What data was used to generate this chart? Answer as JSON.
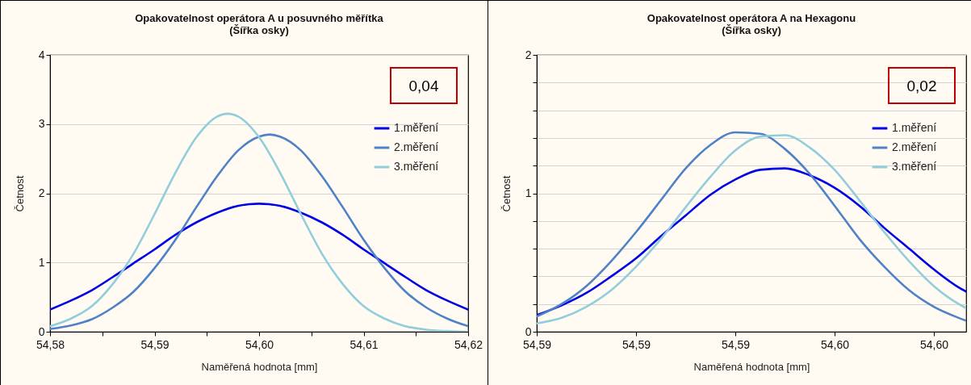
{
  "chart_data": [
    {
      "type": "line",
      "title": "Opakovatelnost operátora A u posuvného měřítka",
      "subtitle": "(Šířka osky)",
      "xlabel": "Naměřená hodnota [mm]",
      "ylabel": "Četnost",
      "annotations": [
        "0,04"
      ],
      "xlim": [
        54.58,
        54.62
      ],
      "xticks": [
        {
          "value": 54.58,
          "label": "54,58"
        },
        {
          "value": 54.585,
          "label": null
        },
        {
          "value": 54.59,
          "label": "54,59"
        },
        {
          "value": 54.595,
          "label": null
        },
        {
          "value": 54.6,
          "label": "54,60"
        },
        {
          "value": 54.605,
          "label": null
        },
        {
          "value": 54.61,
          "label": "54,61"
        },
        {
          "value": 54.615,
          "label": null
        },
        {
          "value": 54.62,
          "label": "54,62"
        }
      ],
      "ylim": [
        0,
        4
      ],
      "yticks": [
        0,
        1,
        2,
        3,
        4
      ],
      "grid": "y",
      "legend": "top right",
      "series": [
        {
          "name": "1.měření",
          "color": "#0000e6",
          "x": [
            54.58,
            54.582,
            54.584,
            54.586,
            54.588,
            54.59,
            54.592,
            54.594,
            54.596,
            54.598,
            54.6,
            54.602,
            54.604,
            54.606,
            54.608,
            54.61,
            54.612,
            54.614,
            54.616,
            54.618,
            54.62
          ],
          "values": [
            0.32,
            0.45,
            0.6,
            0.79,
            0.99,
            1.19,
            1.4,
            1.58,
            1.72,
            1.82,
            1.85,
            1.82,
            1.72,
            1.58,
            1.4,
            1.19,
            0.99,
            0.79,
            0.6,
            0.45,
            0.32
          ]
        },
        {
          "name": "2.měření",
          "color": "#4f81c8",
          "x": [
            54.58,
            54.582,
            54.584,
            54.586,
            54.588,
            54.59,
            54.592,
            54.594,
            54.596,
            54.598,
            54.6,
            54.601,
            54.602,
            54.604,
            54.606,
            54.608,
            54.61,
            54.612,
            54.614,
            54.616,
            54.618,
            54.62
          ],
          "values": [
            0.04,
            0.09,
            0.18,
            0.35,
            0.58,
            0.92,
            1.33,
            1.8,
            2.25,
            2.62,
            2.82,
            2.85,
            2.82,
            2.62,
            2.25,
            1.8,
            1.33,
            0.92,
            0.58,
            0.35,
            0.19,
            0.08
          ]
        },
        {
          "name": "3.měření",
          "color": "#92cddc",
          "x": [
            54.58,
            54.582,
            54.584,
            54.586,
            54.588,
            54.59,
            54.592,
            54.594,
            54.596,
            54.597,
            54.598,
            54.6,
            54.602,
            54.604,
            54.606,
            54.608,
            54.61,
            54.612,
            54.614,
            54.616,
            54.618,
            54.62
          ],
          "values": [
            0.08,
            0.19,
            0.37,
            0.69,
            1.13,
            1.7,
            2.3,
            2.81,
            3.11,
            3.15,
            3.11,
            2.81,
            2.3,
            1.7,
            1.13,
            0.69,
            0.37,
            0.19,
            0.08,
            0.03,
            0.01,
            0
          ]
        }
      ]
    },
    {
      "type": "line",
      "title": "Opakovatelnost operátora A na Hexagonu",
      "subtitle": "(Šířka osky)",
      "xlabel": "Naměřená hodnota [mm]",
      "ylabel": "Četnost",
      "annotations": [
        "0,02"
      ],
      "xlim": [
        54.586,
        54.6033
      ],
      "xticks": [
        {
          "value": 54.586,
          "label": "54,59"
        },
        {
          "value": 54.59,
          "label": "54,59"
        },
        {
          "value": 54.594,
          "label": "54,59"
        },
        {
          "value": 54.598,
          "label": "54,60"
        },
        {
          "value": 54.602,
          "label": "54,60"
        }
      ],
      "ylim": [
        0,
        2
      ],
      "yticks": [
        0,
        {
          "value": 0.2,
          "label": null
        },
        {
          "value": 0.4,
          "label": null
        },
        {
          "value": 0.6,
          "label": null
        },
        {
          "value": 0.8,
          "label": null
        },
        1,
        {
          "value": 1.2,
          "label": null
        },
        {
          "value": 1.4,
          "label": null
        },
        {
          "value": 1.6,
          "label": null
        },
        {
          "value": 1.8,
          "label": null
        },
        2
      ],
      "grid": "y",
      "legend": "top right",
      "series": [
        {
          "name": "1.měření",
          "color": "#0000e6",
          "x": [
            54.586,
            54.587,
            54.588,
            54.589,
            54.59,
            54.591,
            54.592,
            54.593,
            54.594,
            54.595,
            54.596,
            54.597,
            54.598,
            54.599,
            54.6,
            54.601,
            54.602,
            54.603,
            54.6033
          ],
          "values": [
            0.12,
            0.19,
            0.28,
            0.4,
            0.53,
            0.69,
            0.84,
            0.99,
            1.1,
            1.17,
            1.18,
            1.13,
            1.04,
            0.91,
            0.75,
            0.6,
            0.45,
            0.32,
            0.29
          ]
        },
        {
          "name": "2.měření",
          "color": "#4f81c8",
          "x": [
            54.586,
            54.587,
            54.588,
            54.589,
            54.59,
            54.591,
            54.592,
            54.593,
            54.594,
            54.595,
            54.596,
            54.597,
            54.598,
            54.599,
            54.6,
            54.601,
            54.602,
            54.603,
            54.6033
          ],
          "values": [
            0.11,
            0.2,
            0.33,
            0.51,
            0.72,
            0.95,
            1.18,
            1.35,
            1.44,
            1.43,
            1.32,
            1.14,
            0.91,
            0.67,
            0.47,
            0.3,
            0.18,
            0.1,
            0.08
          ]
        },
        {
          "name": "3.měření",
          "color": "#92cddc",
          "x": [
            54.586,
            54.587,
            54.588,
            54.589,
            54.59,
            54.591,
            54.592,
            54.593,
            54.594,
            54.595,
            54.596,
            54.597,
            54.598,
            54.599,
            54.6,
            54.601,
            54.602,
            54.603,
            54.6033
          ],
          "values": [
            0.06,
            0.1,
            0.18,
            0.3,
            0.47,
            0.67,
            0.9,
            1.12,
            1.31,
            1.41,
            1.42,
            1.33,
            1.17,
            0.95,
            0.72,
            0.51,
            0.33,
            0.2,
            0.17
          ]
        }
      ]
    }
  ]
}
